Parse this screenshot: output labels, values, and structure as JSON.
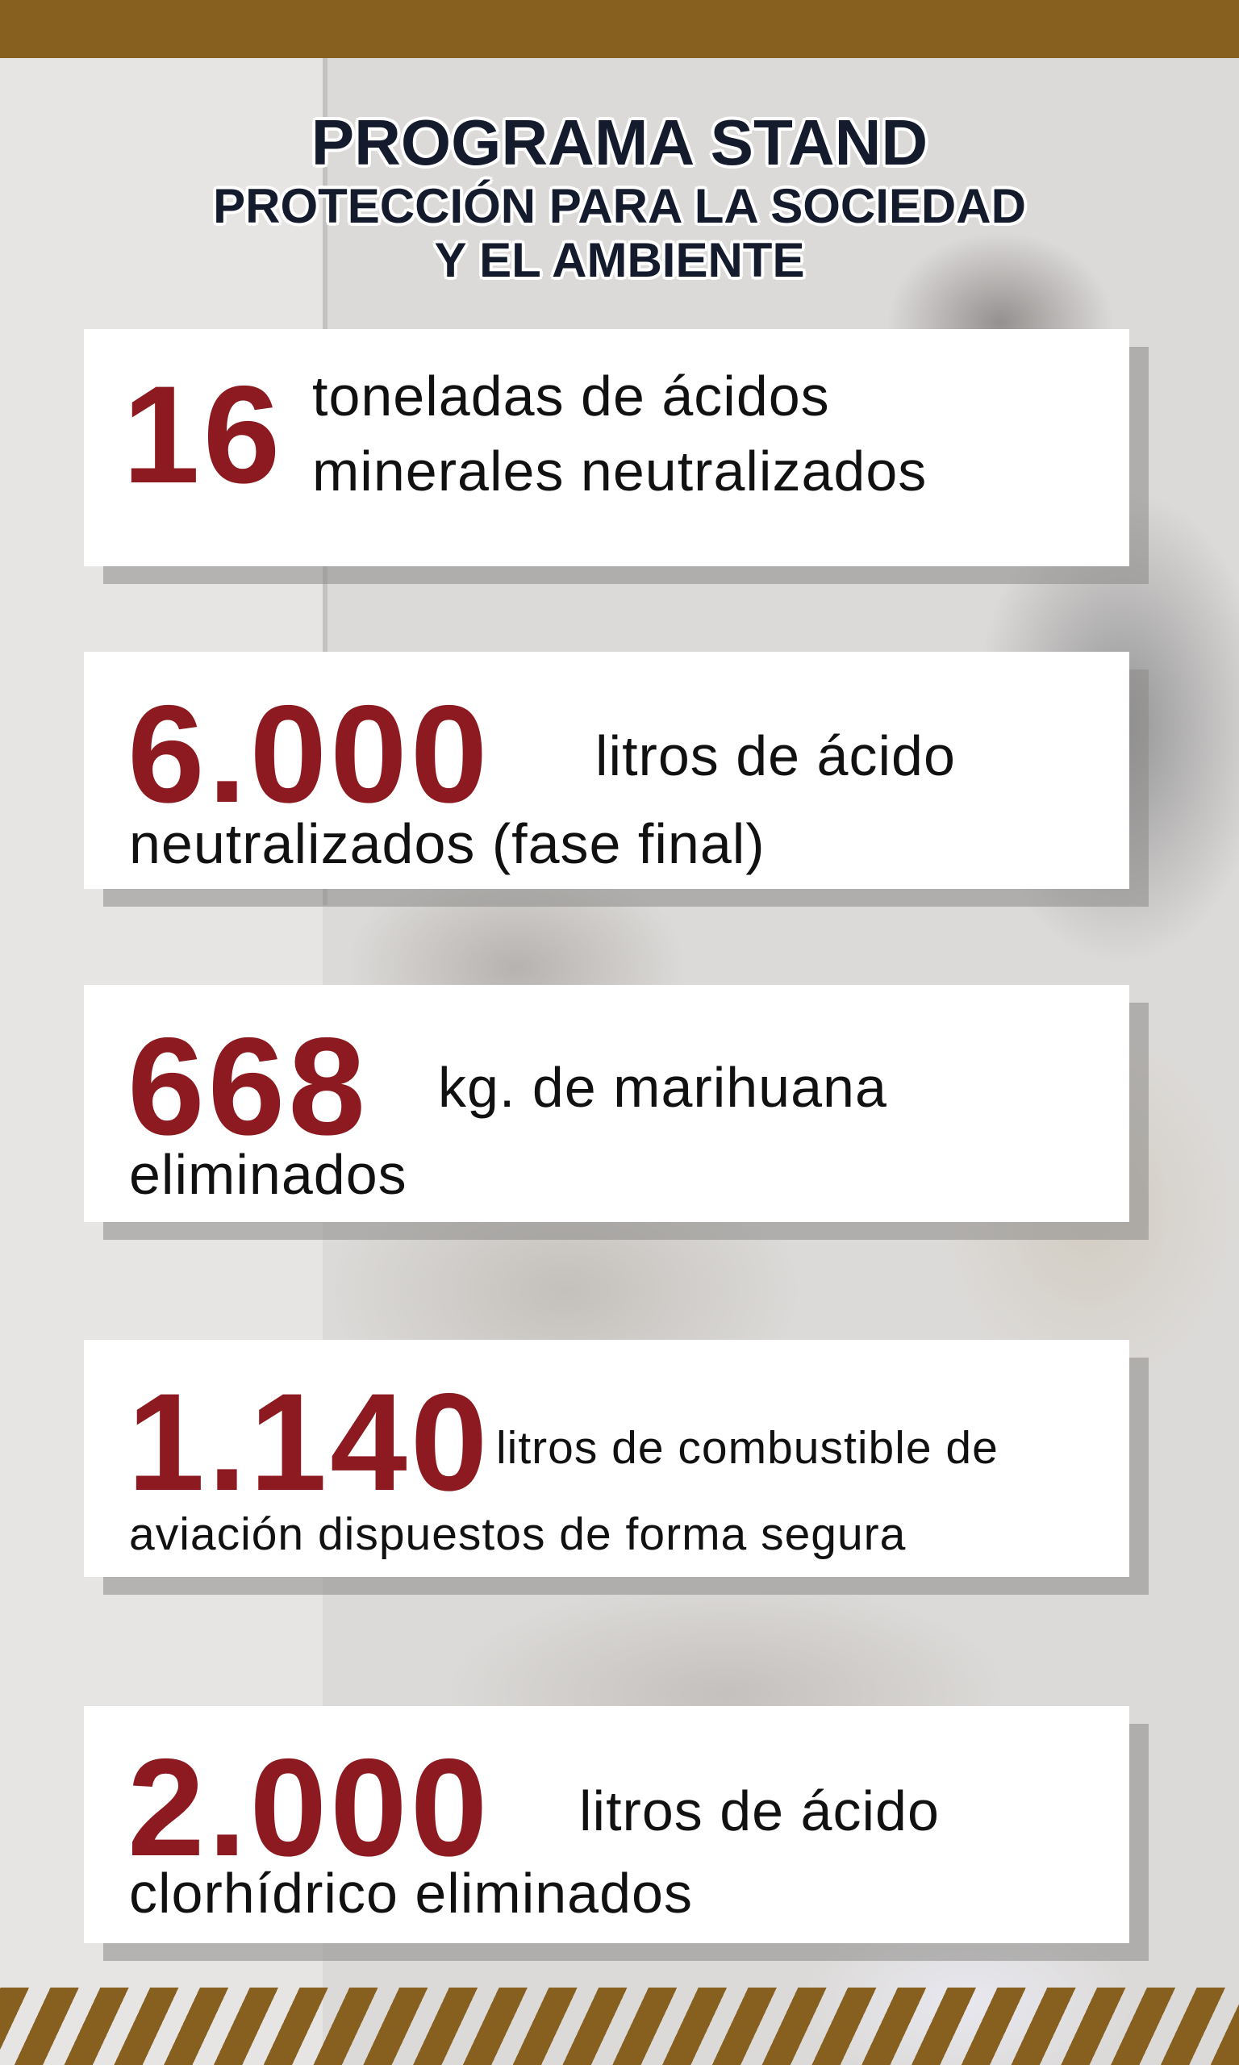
{
  "header": {
    "title_line1": "PROGRAMA STAND",
    "title_line2": "PROTECCIÓN PARA LA SOCIEDAD",
    "title_line3": "Y EL AMBIENTE"
  },
  "colors": {
    "accent_brown": "#87601f",
    "number_red": "#8d1a21",
    "title_navy": "#141b2c"
  },
  "stats": [
    {
      "number": "16",
      "line1": "toneladas de ácidos",
      "line2": "minerales neutralizados"
    },
    {
      "number": "6.000",
      "line1": "litros de ácido",
      "line2": "neutralizados (fase final)"
    },
    {
      "number": "668",
      "line1": "kg. de marihuana",
      "line2": "eliminados"
    },
    {
      "number": "1.140",
      "line1": "litros de combustible de",
      "line2": "aviación dispuestos de forma segura"
    },
    {
      "number": "2.000",
      "line1": "litros de ácido",
      "line2": "clorhídrico eliminados"
    }
  ]
}
